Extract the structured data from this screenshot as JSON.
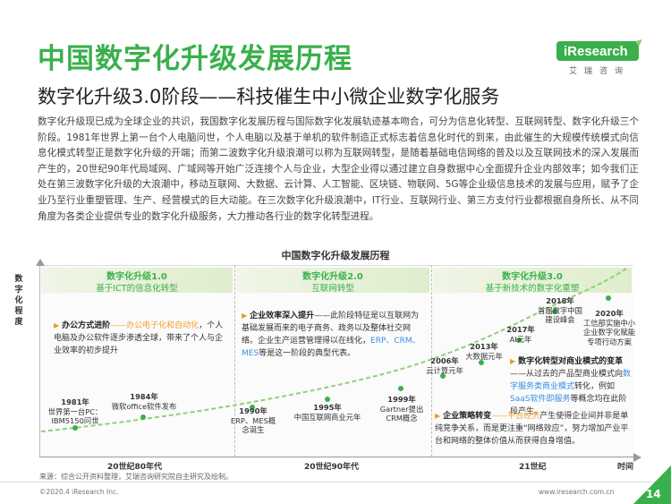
{
  "header": {
    "title": "中国数字化升级发展历程",
    "subtitle": "数字化升级3.0阶段——科技催生中小微企业数字化服务",
    "logo_text": "iResearch",
    "logo_sub": "艾瑞咨询"
  },
  "intro": "数字化升级现已成为全球企业的共识，我国数字化发展历程与国际数字化发展轨迹基本吻合，可分为信息化转型、互联网转型、数字化升级三个阶段。1981年世界上第一台个人电脑问世，个人电脑以及基于单机的软件制造正式标志着信息化时代的到来，由此催生的大规模传统模式向信息化模式转型正是数字化升级的开端；而第二波数字化升级浪潮可以称为互联网转型，是随着基础电信网络的普及以及互联网技术的深入发展而产生的，20世纪90年代局域网、广域网等开始广泛连接个人与企业，大型企业得以通过建立自身数据中心全面提升企业内部效率；如今我们正处在第三波数字化升级的大浪潮中，移动互联网、大数据、云计算、人工智能、区块链、物联网、5G等企业级信息技术的发展与应用，赋予了企业乃至行业重塑管理、生产、经营模式的巨大动能。在三次数字化升级浪潮中，IT行业、互联网行业、第三方支付行业都根据自身所长、从不同角度为各类企业提供专业的数字化升级服务，大力推动各行业的数字化转型进程。",
  "chart": {
    "title": "中国数字化升级发展历程",
    "ylabel": [
      "数",
      "字",
      "化",
      "程",
      "度"
    ],
    "xlabels": [
      "20世纪80年代",
      "20世纪90年代",
      "21世纪",
      "时间"
    ],
    "stages": [
      {
        "title": "数字化升级1.0",
        "desc": "基于ICT的信息化转型"
      },
      {
        "title": "数字化升级2.0",
        "desc": "互联网转型"
      },
      {
        "title": "数字化升级3.0",
        "desc": "基于新技术的数字化重塑"
      }
    ],
    "bullets": {
      "b1_head": "办公方式进阶",
      "b1_dash": "——",
      "b1_hl": "办公电子化和自动化",
      "b1_rest": "，个人电脑及办公软件逐步渗透全球，带来了个人与企业效率的初步提升",
      "b2_head": "企业效率深入提升",
      "b2_rest": "——此阶段特征是以互联网为基础发展而来的电子商务、政务以及整体社交网络。企业生产运营管理得以在线化，",
      "b2_hl": "ERP、CRM、MES",
      "b2_tail": "等是这一阶段的典型代表。",
      "b3_head": "数字化转型对商业模式的变革",
      "b3_rest1": "——从过去的产品型商业模式向",
      "b3_hl1": "数字服务类商业模式",
      "b3_rest2": "转化，例如",
      "b3_hl2": "SaaS软件即服务",
      "b3_rest3": "等概念均在此阶段产生。",
      "b4_head": "企业策略转变",
      "b4_dash": "——",
      "b4_hl": "平台经济",
      "b4_rest": "产生使得企业间并非是单纯竞争关系，而是更注重“网络效应”，努力增加产业平台和网络的整体价值从而获得自身增值。"
    },
    "events": [
      {
        "year": "1981年",
        "text1": "世界第一台PC：",
        "text2": "IBM5150问世"
      },
      {
        "year": "1984年",
        "text1": "微软office软件发布",
        "text2": ""
      },
      {
        "year": "1990年",
        "text1": "ERP、MES概",
        "text2": "念诞生"
      },
      {
        "year": "1995年",
        "text1": "中国互联网商业元年",
        "text2": ""
      },
      {
        "year": "1999年",
        "text1": "Gartner提出",
        "text2": "CRM概念"
      },
      {
        "year": "2006年",
        "text1": "云计算元年",
        "text2": ""
      },
      {
        "year": "2013年",
        "text1": "大数据元年",
        "text2": ""
      },
      {
        "year": "2017年",
        "text1": "AI元年",
        "text2": ""
      },
      {
        "year": "2018年",
        "text1": "首届数字中国",
        "text2": "建设峰会"
      },
      {
        "year": "2020年",
        "text1": "工信部实施中小",
        "text2": "企业数字化赋能",
        "text3": "专项行动方案"
      }
    ]
  },
  "footer": {
    "source": "来源：综合公开资料整理，艾瑞咨询研究院自主研究及绘制。",
    "copyright": "©2020.4 iResearch Inc.",
    "site": "www.iresearch.com.cn",
    "page": "14"
  },
  "colors": {
    "accent": "#3ab04c",
    "highlight": "#f0a030",
    "link": "#3a8ee6"
  }
}
